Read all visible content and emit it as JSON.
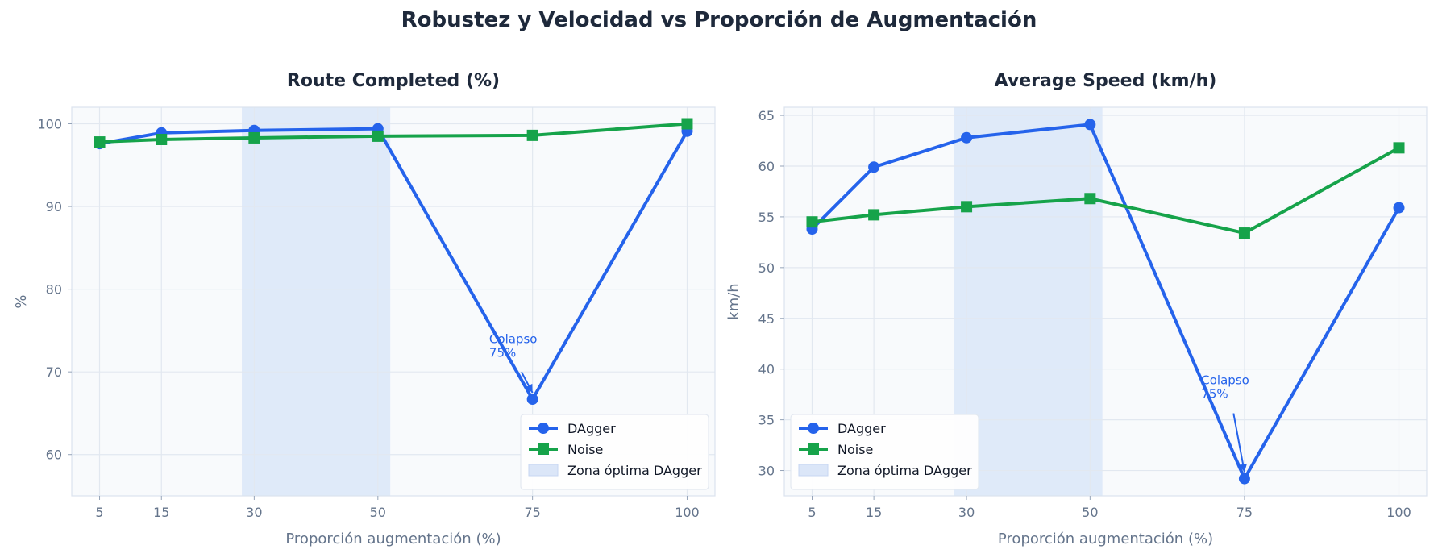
{
  "title": "Robustez y Velocidad vs Proporción de Augmentación",
  "colors": {
    "dagger": "#2563eb",
    "noise": "#16a34a",
    "zone": "#dbe6f8",
    "grid": "#e2e8f0",
    "panel_bg": "#f8fafc"
  },
  "chart_data": [
    {
      "type": "line",
      "title": "Route Completed (%)",
      "xlabel": "Proporción augmentación (%)",
      "ylabel": "%",
      "x": [
        5,
        15,
        30,
        50,
        75,
        100
      ],
      "xticks": [
        5,
        15,
        30,
        50,
        75,
        100
      ],
      "yticks": [
        60,
        70,
        80,
        90,
        100
      ],
      "xlim": [
        0.5,
        104.5
      ],
      "ylim": [
        55,
        102
      ],
      "grid": true,
      "legend_position": "lower-right",
      "zone": {
        "label": "Zona óptima DAgger",
        "x_from": 28,
        "x_to": 52
      },
      "series": [
        {
          "name": "DAgger",
          "marker": "circle",
          "values": [
            97.6,
            98.9,
            99.2,
            99.4,
            66.7,
            99.1
          ]
        },
        {
          "name": "Noise",
          "marker": "square",
          "values": [
            97.8,
            98.1,
            98.3,
            98.5,
            98.6,
            100.0
          ]
        }
      ],
      "annotation": {
        "lines": [
          "Colapso",
          "75%"
        ],
        "text_x": 68,
        "text_y": 73.5,
        "point_x": 75,
        "point_y": 66.7
      }
    },
    {
      "type": "line",
      "title": "Average Speed (km/h)",
      "xlabel": "Proporción augmentación (%)",
      "ylabel": "km/h",
      "x": [
        5,
        15,
        30,
        50,
        75,
        100
      ],
      "xticks": [
        5,
        15,
        30,
        50,
        75,
        100
      ],
      "yticks": [
        30,
        35,
        40,
        45,
        50,
        55,
        60,
        65
      ],
      "xlim": [
        0.5,
        104.5
      ],
      "ylim": [
        27.5,
        65.8
      ],
      "grid": true,
      "legend_position": "lower-left",
      "zone": {
        "label": "Zona óptima DAgger",
        "x_from": 28,
        "x_to": 52
      },
      "series": [
        {
          "name": "DAgger",
          "marker": "circle",
          "values": [
            53.8,
            59.9,
            62.8,
            64.1,
            29.2,
            55.9
          ]
        },
        {
          "name": "Noise",
          "marker": "square",
          "values": [
            54.5,
            55.2,
            56.0,
            56.8,
            53.4,
            61.8
          ]
        }
      ],
      "annotation": {
        "lines": [
          "Colapso",
          "75%"
        ],
        "text_x": 68,
        "text_y": 38.5,
        "point_x": 75,
        "point_y": 29.2
      }
    }
  ]
}
